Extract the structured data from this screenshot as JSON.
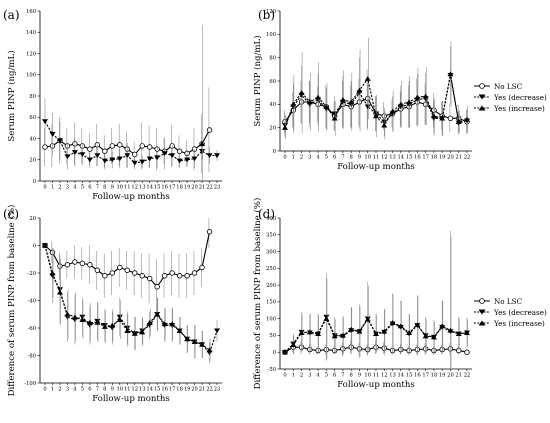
{
  "legend": {
    "no_lsc": "No LSC",
    "yes_decrease": "Yes (decrease)",
    "yes_increase": "Yes (increase)"
  },
  "chart_data": [
    {
      "panel": "(a)",
      "type": "line",
      "xlabel": "Follow-up months",
      "ylabel": "Serum PINP (ng/mL)",
      "xlim": [
        0,
        23
      ],
      "ylim": [
        0,
        160
      ],
      "yticks": [
        0,
        20,
        40,
        60,
        80,
        100,
        120,
        140,
        160
      ],
      "x": [
        0,
        1,
        2,
        3,
        4,
        5,
        6,
        7,
        8,
        9,
        10,
        11,
        12,
        13,
        14,
        15,
        16,
        17,
        18,
        19,
        20,
        21,
        22,
        23
      ],
      "series": [
        {
          "name": "No LSC",
          "marker": "circle",
          "line": "solid",
          "x": [
            0,
            1,
            2,
            3,
            4,
            5,
            6,
            7,
            8,
            9,
            10,
            11,
            12,
            13,
            14,
            15,
            16,
            17,
            18,
            19,
            20,
            21,
            22
          ],
          "values": [
            32,
            33,
            38,
            33,
            35,
            33,
            30,
            34,
            28,
            33,
            34,
            30,
            25,
            33,
            32,
            30,
            28,
            33,
            28,
            26,
            30,
            35,
            48
          ],
          "err": [
            18,
            20,
            22,
            17,
            20,
            17,
            15,
            20,
            15,
            17,
            20,
            17,
            12,
            22,
            20,
            20,
            12,
            20,
            15,
            12,
            20,
            28,
            40
          ]
        },
        {
          "name": "Yes (decrease)",
          "marker": "triangle-down",
          "line": "dashed",
          "x": [
            0,
            1,
            2,
            3,
            4,
            5,
            6,
            7,
            8,
            9,
            10,
            11,
            12,
            13,
            14,
            15,
            16,
            17,
            18,
            19,
            20,
            21,
            22,
            23
          ],
          "values": [
            56,
            44,
            38,
            23,
            27,
            25,
            20,
            24,
            19,
            20,
            21,
            24,
            17,
            18,
            21,
            22,
            26,
            24,
            19,
            20,
            21,
            28,
            24,
            24
          ],
          "err": [
            22,
            20,
            18,
            12,
            13,
            10,
            8,
            10,
            8,
            8,
            9,
            12,
            6,
            6,
            8,
            10,
            15,
            10,
            7,
            7,
            9,
            8,
            8,
            5
          ]
        },
        {
          "name": "Yes (increase)",
          "marker": "triangle-up",
          "line": "dashed",
          "x": [
            21
          ],
          "values": [
            35
          ],
          "err": [
            112
          ]
        }
      ]
    },
    {
      "panel": "(b)",
      "type": "line",
      "xlabel": "Follow-up months",
      "ylabel": "Serum PINP (ng/mL)",
      "xlim": [
        0,
        22
      ],
      "ylim": [
        0,
        120
      ],
      "yticks": [
        0,
        20,
        40,
        60,
        80,
        100,
        120
      ],
      "x": [
        0,
        1,
        2,
        3,
        4,
        5,
        6,
        7,
        8,
        9,
        10,
        11,
        12,
        13,
        14,
        15,
        16,
        17,
        18,
        19,
        20,
        21,
        22
      ],
      "series": [
        {
          "name": "No LSC",
          "marker": "circle",
          "line": "solid",
          "x": [
            0,
            1,
            2,
            3,
            4,
            5,
            6,
            7,
            8,
            9,
            10,
            11,
            12,
            13,
            14,
            15,
            16,
            17,
            18,
            19,
            20,
            21,
            22
          ],
          "values": [
            25,
            35,
            42,
            42,
            40,
            38,
            30,
            40,
            38,
            42,
            45,
            32,
            30,
            32,
            36,
            38,
            42,
            40,
            35,
            30,
            28,
            28,
            25
          ],
          "err": [
            10,
            15,
            18,
            18,
            15,
            18,
            12,
            20,
            18,
            20,
            25,
            15,
            12,
            12,
            15,
            18,
            20,
            18,
            15,
            12,
            12,
            12,
            10
          ]
        },
        {
          "name": "Yes (decrease)",
          "marker": "triangle-down",
          "line": "dashed",
          "x": [
            0,
            1,
            2,
            3,
            4,
            5,
            6,
            7,
            8,
            9,
            10,
            11,
            12,
            13,
            14,
            15,
            16,
            17,
            18,
            19,
            20,
            21,
            22
          ],
          "values": [
            22,
            38,
            48,
            40,
            44,
            36,
            32,
            42,
            40,
            50,
            38,
            32,
            25,
            32,
            38,
            40,
            44,
            45,
            28,
            28,
            65,
            24,
            26
          ],
          "err": [
            10,
            20,
            25,
            20,
            22,
            18,
            15,
            22,
            20,
            30,
            20,
            15,
            12,
            15,
            18,
            20,
            22,
            22,
            15,
            15,
            25,
            10,
            10
          ]
        },
        {
          "name": "Yes (increase)",
          "marker": "triangle-up",
          "line": "dashed",
          "x": [
            0,
            1,
            2,
            3,
            4,
            5,
            6,
            7,
            8,
            9,
            10,
            11,
            12,
            13,
            14,
            15,
            16,
            17,
            18,
            19,
            20,
            21,
            22
          ],
          "values": [
            20,
            40,
            50,
            42,
            46,
            38,
            28,
            44,
            42,
            52,
            62,
            30,
            22,
            34,
            40,
            42,
            46,
            47,
            30,
            28,
            66,
            25,
            27
          ],
          "err": [
            10,
            25,
            35,
            25,
            30,
            20,
            15,
            25,
            25,
            35,
            35,
            18,
            12,
            18,
            20,
            22,
            25,
            25,
            15,
            15,
            28,
            10,
            12
          ]
        }
      ]
    },
    {
      "panel": "(c)",
      "type": "line",
      "xlabel": "Follow-up months",
      "ylabel": "Difference of serum PINP from baseline (%)",
      "xlim": [
        0,
        23
      ],
      "ylim": [
        -100,
        20
      ],
      "yticks": [
        -100,
        -80,
        -60,
        -40,
        -20,
        0,
        20
      ],
      "x": [
        0,
        1,
        2,
        3,
        4,
        5,
        6,
        7,
        8,
        9,
        10,
        11,
        12,
        13,
        14,
        15,
        16,
        17,
        18,
        19,
        20,
        21,
        22,
        23
      ],
      "series": [
        {
          "name": "No LSC",
          "marker": "circle",
          "line": "solid",
          "x": [
            0,
            1,
            2,
            3,
            4,
            5,
            6,
            7,
            8,
            9,
            10,
            11,
            12,
            13,
            14,
            15,
            16,
            17,
            18,
            19,
            20,
            21,
            22
          ],
          "values": [
            0,
            -5,
            -15,
            -14,
            -12,
            -13,
            -14,
            -18,
            -22,
            -20,
            -16,
            -18,
            -20,
            -22,
            -24,
            -30,
            -22,
            -20,
            -22,
            -22,
            -20,
            -16,
            10
          ],
          "err": [
            0,
            8,
            10,
            10,
            12,
            12,
            14,
            14,
            16,
            16,
            14,
            14,
            16,
            16,
            18,
            20,
            16,
            16,
            16,
            16,
            16,
            14,
            12
          ]
        },
        {
          "name": "Yes (decrease)",
          "marker": "triangle-down",
          "line": "dashed",
          "x": [
            0,
            1,
            2,
            3,
            4,
            5,
            6,
            7,
            8,
            9,
            10,
            11,
            12,
            13,
            14,
            15,
            16,
            17,
            18,
            19,
            20,
            21,
            22,
            23
          ],
          "values": [
            0,
            -22,
            -32,
            -52,
            -54,
            -52,
            -58,
            -55,
            -58,
            -60,
            -52,
            -60,
            -64,
            -62,
            -58,
            -50,
            -58,
            -58,
            -62,
            -68,
            -70,
            -72,
            -78,
            -62
          ],
          "err": [
            0,
            20,
            25,
            18,
            18,
            14,
            14,
            14,
            12,
            12,
            14,
            12,
            12,
            10,
            10,
            12,
            12,
            12,
            10,
            10,
            12,
            10,
            8,
            8
          ]
        },
        {
          "name": "Yes (increase)",
          "marker": "triangle-up",
          "line": "dashed",
          "x": [
            0,
            1,
            2,
            3,
            4,
            5,
            6,
            7,
            8,
            9,
            10,
            11,
            12,
            13,
            14,
            15,
            16,
            17,
            18,
            19,
            20,
            21,
            22
          ],
          "values": [
            0,
            -20,
            -34,
            -50,
            -52,
            -54,
            -56,
            -56,
            -59,
            -58,
            -54,
            -62,
            -64,
            -63,
            -56,
            -50,
            -57,
            -57,
            -62,
            -68,
            -70,
            -72,
            -76
          ],
          "err": [
            0,
            18,
            24,
            18,
            18,
            14,
            14,
            14,
            12,
            12,
            14,
            12,
            12,
            10,
            10,
            12,
            12,
            12,
            10,
            10,
            12,
            10,
            8
          ]
        }
      ]
    },
    {
      "panel": "(d)",
      "type": "line",
      "xlabel": "Follow-up months",
      "ylabel": "Difference of serum PINP from baseline (%)",
      "xlim": [
        0,
        22
      ],
      "ylim": [
        -50,
        400
      ],
      "yticks": [
        -50,
        0,
        50,
        100,
        150,
        200,
        250,
        300,
        350,
        400
      ],
      "x": [
        0,
        1,
        2,
        3,
        4,
        5,
        6,
        7,
        8,
        9,
        10,
        11,
        12,
        13,
        14,
        15,
        16,
        17,
        18,
        19,
        20,
        21,
        22
      ],
      "series": [
        {
          "name": "No LSC",
          "marker": "circle",
          "line": "solid",
          "x": [
            0,
            1,
            2,
            3,
            4,
            5,
            6,
            7,
            8,
            9,
            10,
            11,
            12,
            13,
            14,
            15,
            16,
            17,
            18,
            19,
            20,
            21,
            22
          ],
          "values": [
            0,
            15,
            15,
            8,
            5,
            8,
            5,
            10,
            15,
            10,
            8,
            15,
            12,
            5,
            8,
            5,
            8,
            10,
            5,
            8,
            10,
            5,
            0
          ],
          "err": [
            0,
            15,
            20,
            15,
            12,
            15,
            12,
            18,
            20,
            18,
            15,
            20,
            18,
            12,
            15,
            12,
            15,
            18,
            12,
            15,
            18,
            12,
            0
          ]
        },
        {
          "name": "Yes (decrease)",
          "marker": "triangle-down",
          "line": "dashed",
          "x": [
            0,
            1,
            2,
            3,
            4,
            5,
            6,
            7,
            8,
            9,
            10,
            11,
            12,
            13,
            14,
            15,
            16,
            17,
            18,
            19,
            20,
            21,
            22
          ],
          "values": [
            0,
            25,
            60,
            58,
            55,
            105,
            50,
            48,
            65,
            62,
            100,
            55,
            60,
            85,
            75,
            55,
            80,
            50,
            45,
            75,
            62,
            55,
            58
          ],
          "err": [
            0,
            30,
            60,
            55,
            60,
            130,
            55,
            60,
            70,
            80,
            110,
            60,
            70,
            90,
            80,
            60,
            90,
            55,
            50,
            80,
            300,
            50,
            45
          ]
        },
        {
          "name": "Yes (increase)",
          "marker": "triangle-up",
          "line": "dashed",
          "x": [
            0,
            1,
            2,
            3,
            4,
            5,
            6,
            7,
            8,
            9,
            10,
            11,
            12,
            13,
            14,
            15,
            16,
            17,
            18,
            19,
            20,
            21,
            22
          ],
          "values": [
            0,
            22,
            58,
            60,
            55,
            100,
            48,
            50,
            68,
            62,
            98,
            55,
            62,
            88,
            78,
            58,
            82,
            48,
            45,
            78,
            65,
            55,
            58
          ],
          "err": [
            0,
            28,
            55,
            55,
            55,
            120,
            50,
            55,
            65,
            75,
            100,
            55,
            65,
            85,
            75,
            55,
            85,
            50,
            45,
            75,
            280,
            45,
            40
          ]
        }
      ]
    }
  ]
}
